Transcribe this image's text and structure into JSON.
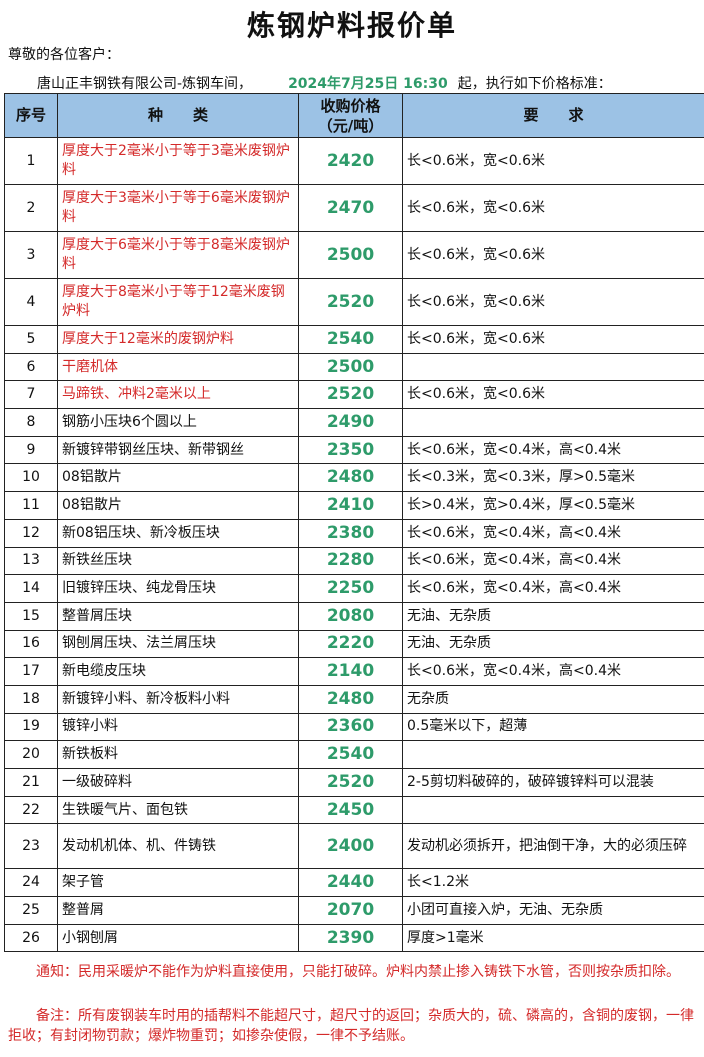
{
  "title": "炼钢炉料报价单",
  "greeting": "尊敬的各位客户：",
  "company": "唐山正丰钢铁有限公司-炼钢车间，",
  "effective_date": "2024年7月25日 16:30",
  "effective_suffix": "起，执行如下价格标准：",
  "colors": {
    "price": "#2e9b6a",
    "red_text": "#d42a2a",
    "header_bg": "#9cc2e5"
  },
  "table": {
    "headers": {
      "no": "序号",
      "kind": "种　　类",
      "price": "收购价格\n（元/吨）",
      "req": "要　　求"
    },
    "rows": [
      {
        "no": "1",
        "kind": "厚度大于2毫米小于等于3毫米废钢炉料",
        "price": "2420",
        "req": "长<0.6米，宽<0.6米",
        "red": true
      },
      {
        "no": "2",
        "kind": "厚度大于3毫米小于等于6毫米废钢炉料",
        "price": "2470",
        "req": "长<0.6米，宽<0.6米",
        "red": true
      },
      {
        "no": "3",
        "kind": "厚度大于6毫米小于等于8毫米废钢炉料",
        "price": "2500",
        "req": "长<0.6米，宽<0.6米",
        "red": true
      },
      {
        "no": "4",
        "kind": "厚度大于8毫米小于等于12毫米废钢炉料",
        "price": "2520",
        "req": "长<0.6米，宽<0.6米",
        "red": true
      },
      {
        "no": "5",
        "kind": "厚度大于12毫米的废钢炉料",
        "price": "2540",
        "req": "长<0.6米，宽<0.6米",
        "red": true
      },
      {
        "no": "6",
        "kind": "干磨机体",
        "price": "2500",
        "req": "",
        "red": true
      },
      {
        "no": "7",
        "kind": "马蹄铁、冲料2毫米以上",
        "price": "2520",
        "req": "长<0.6米，宽<0.6米",
        "red": true
      },
      {
        "no": "8",
        "kind": "钢筋小压块6个圆以上",
        "price": "2490",
        "req": ""
      },
      {
        "no": "9",
        "kind": "新镀锌带钢丝压块、新带钢丝",
        "price": "2350",
        "req": "长<0.6米，宽<0.4米，高<0.4米"
      },
      {
        "no": "10",
        "kind": "08铝散片",
        "price": "2480",
        "req": "长<0.3米，宽<0.3米，厚>0.5毫米"
      },
      {
        "no": "11",
        "kind": "08铝散片",
        "price": "2410",
        "req": "长>0.4米，宽>0.4米，厚<0.5毫米"
      },
      {
        "no": "12",
        "kind": "新08铝压块、新冷板压块",
        "price": "2380",
        "req": "长<0.6米，宽<0.4米，高<0.4米"
      },
      {
        "no": "13",
        "kind": "新铁丝压块",
        "price": "2280",
        "req": "长<0.6米，宽<0.4米，高<0.4米"
      },
      {
        "no": "14",
        "kind": "旧镀锌压块、纯龙骨压块",
        "price": "2250",
        "req": "长<0.6米，宽<0.4米，高<0.4米"
      },
      {
        "no": "15",
        "kind": "整普屑压块",
        "price": "2080",
        "req": "无油、无杂质"
      },
      {
        "no": "16",
        "kind": "钢刨屑压块、法兰屑压块",
        "price": "2220",
        "req": "无油、无杂质"
      },
      {
        "no": "17",
        "kind": "新电缆皮压块",
        "price": "2140",
        "req": "长<0.6米，宽<0.4米，高<0.4米"
      },
      {
        "no": "18",
        "kind": "新镀锌小料、新冷板料小料",
        "price": "2480",
        "req": "无杂质"
      },
      {
        "no": "19",
        "kind": "镀锌小料",
        "price": "2360",
        "req": "0.5毫米以下，超薄"
      },
      {
        "no": "20",
        "kind": "新铁板料",
        "price": "2540",
        "req": ""
      },
      {
        "no": "21",
        "kind": "一级破碎料",
        "price": "2520",
        "req": "2-5剪切料破碎的，破碎镀锌料可以混装"
      },
      {
        "no": "22",
        "kind": "生铁暖气片、面包铁",
        "price": "2450",
        "req": ""
      },
      {
        "no": "23",
        "kind": "发动机机体、机、件铸铁",
        "price": "2400",
        "req": "发动机必须拆开，把油倒干净，大的必须压碎"
      },
      {
        "no": "24",
        "kind": "架子管",
        "price": "2440",
        "req": "长<1.2米"
      },
      {
        "no": "25",
        "kind": "整普屑",
        "price": "2070",
        "req": "小团可直接入炉，无油、无杂质"
      },
      {
        "no": "26",
        "kind": "小钢刨屑",
        "price": "2390",
        "req": "厚度>1毫米"
      }
    ]
  },
  "notice": "通知：民用采暖炉不能作为炉料直接使用，只能打破碎。炉料内禁止掺入铸铁下水管，否则按杂质扣除。",
  "remark": "备注：所有废钢装车时用的插帮料不能超尺寸，超尺寸的返回；杂质大的，硫、磷高的，含铜的废钢，一律拒收；有封闭物罚款；爆炸物重罚；如掺杂使假，一律不予结账。"
}
